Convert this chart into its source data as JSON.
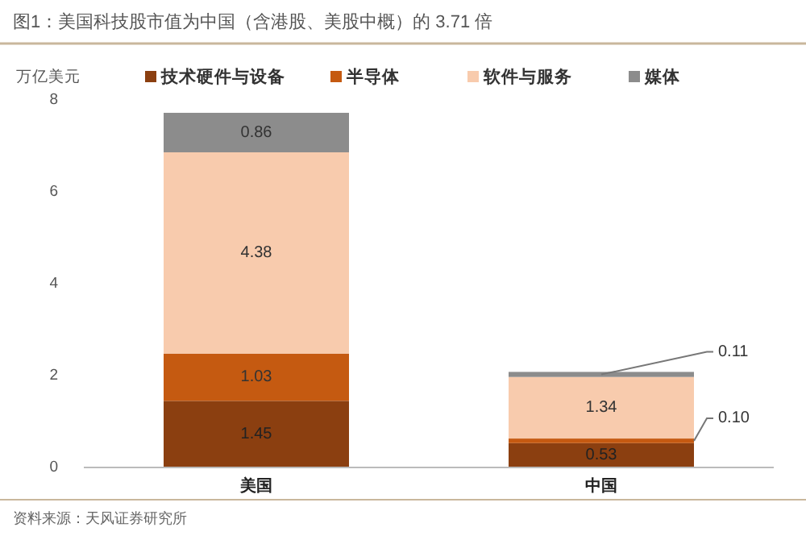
{
  "chart_data": {
    "type": "bar",
    "stacked": true,
    "title": "图1：美国科技股市值为中国（含港股、美股中概）的 3.71 倍",
    "ylabel": "万亿美元",
    "categories": [
      "美国",
      "中国"
    ],
    "series": [
      {
        "name": "技术硬件与设备",
        "color": "#8b3f10",
        "values": [
          1.45,
          0.53
        ],
        "value_labels": [
          "1.45",
          "0.53"
        ]
      },
      {
        "name": "半导体",
        "color": "#c55a11",
        "values": [
          1.03,
          0.1
        ],
        "value_labels": [
          "1.03",
          "0.10"
        ]
      },
      {
        "name": "软件与服务",
        "color": "#f8cbad",
        "values": [
          4.38,
          1.34
        ],
        "value_labels": [
          "4.38",
          "1.34"
        ]
      },
      {
        "name": "媒体",
        "color": "#8c8c8c",
        "values": [
          0.86,
          0.11
        ],
        "value_labels": [
          "0.86",
          "0.11"
        ]
      }
    ],
    "ylim": [
      0,
      8
    ],
    "yticks": [
      0,
      2,
      4,
      6,
      8
    ],
    "grid": false,
    "legend": "top",
    "annotations": [
      "资料来源：天风证券研究所"
    ]
  }
}
